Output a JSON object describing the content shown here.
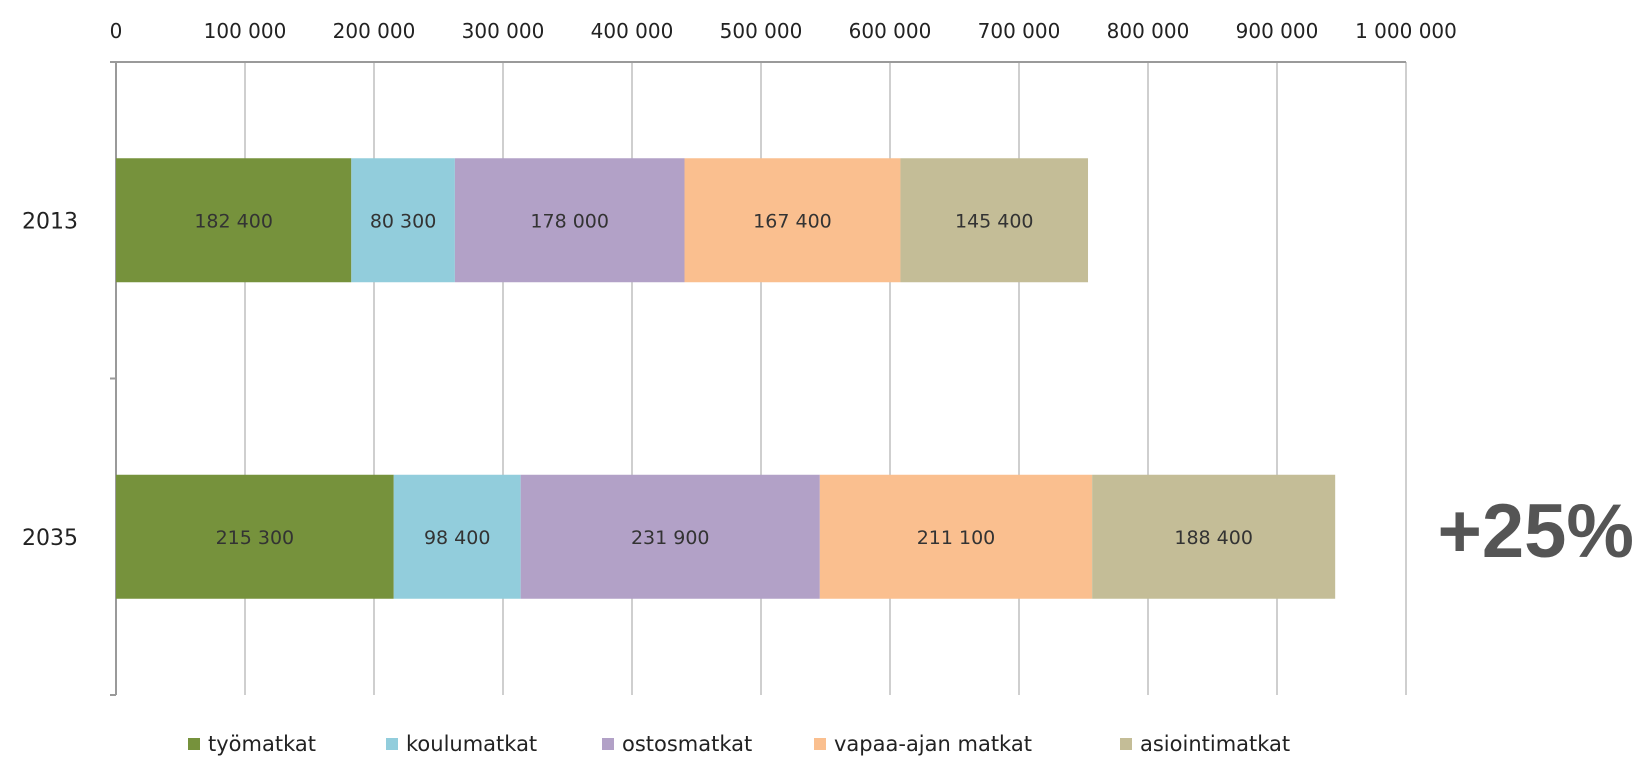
{
  "chart_data": {
    "type": "bar",
    "orientation": "horizontal",
    "stacked": true,
    "categories": [
      "2013",
      "2035"
    ],
    "series": [
      {
        "name": "työmatkat",
        "color": "#76923c",
        "values": [
          182400,
          215300
        ],
        "labels": [
          "182 400",
          "215 300"
        ]
      },
      {
        "name": "koulumatkat",
        "color": "#92cddc",
        "values": [
          80300,
          98400
        ],
        "labels": [
          "80 300",
          "98 400"
        ]
      },
      {
        "name": "ostosmatkat",
        "color": "#b2a1c7",
        "values": [
          178000,
          231900
        ],
        "labels": [
          "178 000",
          "231 900"
        ]
      },
      {
        "name": "vapaa-ajan matkat",
        "color": "#fabf8f",
        "values": [
          167400,
          211100
        ],
        "labels": [
          "167 400",
          "211 100"
        ]
      },
      {
        "name": "asiointimatkat",
        "color": "#c4bd97",
        "values": [
          145400,
          188400
        ],
        "labels": [
          "145 400",
          "188 400"
        ]
      }
    ],
    "xlim": [
      0,
      1000000
    ],
    "xticks": [
      0,
      100000,
      200000,
      300000,
      400000,
      500000,
      600000,
      700000,
      800000,
      900000,
      1000000
    ],
    "xtick_labels": [
      "0",
      "100 000",
      "200 000",
      "300 000",
      "400 000",
      "500 000",
      "600 000",
      "700 000",
      "800 000",
      "900 000",
      "1 000 000"
    ],
    "x_axis_position": "top",
    "grid": true,
    "legend_position": "bottom",
    "annotation": "+25%"
  }
}
